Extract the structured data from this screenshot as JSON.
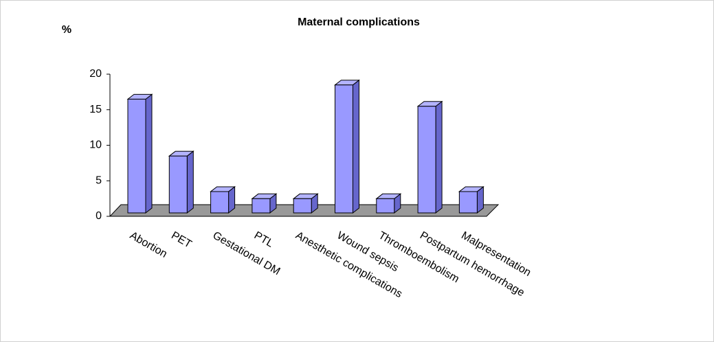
{
  "chart_data": {
    "type": "bar3d",
    "title": "Maternal complications",
    "y_label": "%",
    "categories": [
      "Abortion",
      "PET",
      "Gestational DM",
      "PTL",
      "Anesthetic complications",
      "Wound sepsis",
      "Thromboembolism",
      "Postpartum hemorrhage",
      "Malpresentation"
    ],
    "values": [
      16,
      8,
      3,
      2,
      2,
      18,
      2,
      15,
      3
    ],
    "color": "#9999ff",
    "ylim": [
      0,
      20
    ],
    "yticks": [
      0,
      5,
      10,
      15,
      20
    ],
    "grid": false
  }
}
